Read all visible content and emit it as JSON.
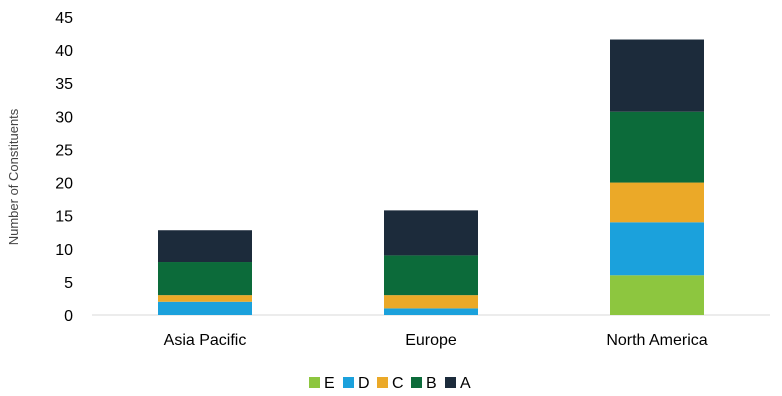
{
  "chart_data": {
    "type": "bar",
    "stacked": true,
    "categories": [
      "Asia Pacific",
      "Europe",
      "North America"
    ],
    "ylabel": "Number of Constituents",
    "xlabel": "",
    "ylim": [
      0,
      45
    ],
    "yticks": [
      0,
      5,
      10,
      15,
      20,
      25,
      30,
      35,
      40,
      45
    ],
    "grid": false,
    "legend_position": "bottom",
    "series": [
      {
        "name": "E",
        "color": "#8dc63f",
        "values": [
          0,
          0,
          6
        ]
      },
      {
        "name": "D",
        "color": "#1ba1dc",
        "values": [
          2,
          1,
          8
        ]
      },
      {
        "name": "C",
        "color": "#eba928",
        "values": [
          1,
          2,
          6
        ]
      },
      {
        "name": "B",
        "color": "#0c6b3a",
        "values": [
          5,
          6,
          10.7
        ]
      },
      {
        "name": "A",
        "color": "#1c2b3b",
        "values": [
          4.8,
          6.8,
          10.9
        ]
      }
    ],
    "legend_order": [
      "E",
      "D",
      "C",
      "B",
      "A"
    ]
  }
}
